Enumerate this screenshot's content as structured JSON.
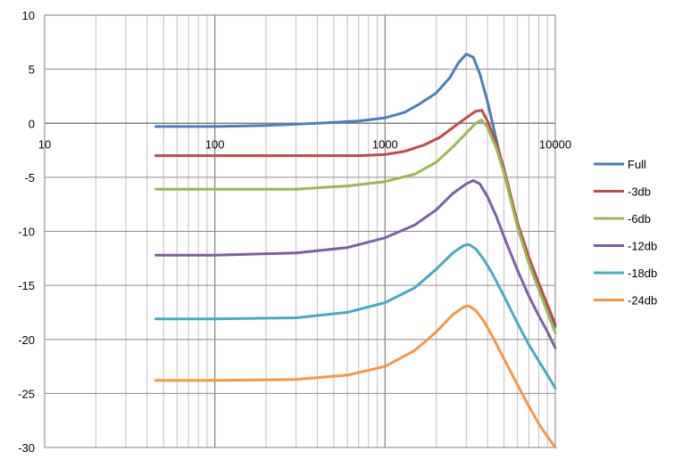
{
  "chart_data": {
    "type": "line",
    "x_scale": "log",
    "xlim": [
      10,
      10000
    ],
    "ylim": [
      -30,
      10
    ],
    "x_tick_labels": [
      "10",
      "100",
      "1000",
      "10000"
    ],
    "y_tick_labels": [
      "10",
      "5",
      "0",
      "-5",
      "-10",
      "-15",
      "-20",
      "-25",
      "-30"
    ],
    "y_ticks": [
      10,
      5,
      0,
      -5,
      -10,
      -15,
      -20,
      -25,
      -30
    ],
    "x_ticks": [
      10,
      100,
      1000,
      10000
    ],
    "grid": true,
    "legend_position": "right",
    "series": [
      {
        "name": "Full",
        "color": "#4A7EBB",
        "points": [
          [
            45,
            -0.3
          ],
          [
            100,
            -0.3
          ],
          [
            200,
            -0.2
          ],
          [
            400,
            0.0
          ],
          [
            700,
            0.2
          ],
          [
            1000,
            0.5
          ],
          [
            1300,
            1.0
          ],
          [
            1600,
            1.8
          ],
          [
            2000,
            2.8
          ],
          [
            2400,
            4.2
          ],
          [
            2700,
            5.6
          ],
          [
            3000,
            6.4
          ],
          [
            3300,
            6.1
          ],
          [
            3600,
            4.6
          ],
          [
            4000,
            2.0
          ],
          [
            4500,
            -1.5
          ],
          [
            5000,
            -4.6
          ],
          [
            6000,
            -9.5
          ],
          [
            7000,
            -12.5
          ],
          [
            8000,
            -15.0
          ],
          [
            9000,
            -17.0
          ],
          [
            10000,
            -18.8
          ]
        ]
      },
      {
        "name": "-3db",
        "color": "#BE4B48",
        "points": [
          [
            45,
            -3.0
          ],
          [
            100,
            -3.0
          ],
          [
            300,
            -3.0
          ],
          [
            700,
            -3.0
          ],
          [
            1000,
            -2.9
          ],
          [
            1300,
            -2.6
          ],
          [
            1700,
            -2.0
          ],
          [
            2100,
            -1.3
          ],
          [
            2600,
            -0.2
          ],
          [
            3000,
            0.5
          ],
          [
            3400,
            1.1
          ],
          [
            3700,
            1.2
          ],
          [
            4000,
            0.2
          ],
          [
            4500,
            -1.8
          ],
          [
            5000,
            -4.2
          ],
          [
            6000,
            -9.2
          ],
          [
            7000,
            -12.4
          ],
          [
            8000,
            -14.8
          ],
          [
            9000,
            -16.8
          ],
          [
            10000,
            -18.6
          ]
        ]
      },
      {
        "name": "-6db",
        "color": "#98B954",
        "points": [
          [
            45,
            -6.1
          ],
          [
            100,
            -6.1
          ],
          [
            300,
            -6.1
          ],
          [
            600,
            -5.8
          ],
          [
            1000,
            -5.4
          ],
          [
            1500,
            -4.7
          ],
          [
            2000,
            -3.6
          ],
          [
            2500,
            -2.2
          ],
          [
            3000,
            -0.9
          ],
          [
            3400,
            0.0
          ],
          [
            3700,
            0.3
          ],
          [
            4000,
            -0.4
          ],
          [
            4500,
            -2.3
          ],
          [
            5000,
            -4.6
          ],
          [
            6000,
            -9.6
          ],
          [
            7000,
            -13.0
          ],
          [
            8000,
            -15.4
          ],
          [
            9000,
            -17.5
          ],
          [
            10000,
            -19.4
          ]
        ]
      },
      {
        "name": "-12db",
        "color": "#7D60A0",
        "points": [
          [
            45,
            -12.2
          ],
          [
            100,
            -12.2
          ],
          [
            300,
            -12.0
          ],
          [
            600,
            -11.5
          ],
          [
            1000,
            -10.6
          ],
          [
            1500,
            -9.4
          ],
          [
            2000,
            -8.0
          ],
          [
            2500,
            -6.5
          ],
          [
            3000,
            -5.6
          ],
          [
            3300,
            -5.3
          ],
          [
            3600,
            -5.6
          ],
          [
            4000,
            -6.8
          ],
          [
            4500,
            -8.6
          ],
          [
            5000,
            -10.5
          ],
          [
            6000,
            -13.6
          ],
          [
            7000,
            -16.0
          ],
          [
            8000,
            -17.8
          ],
          [
            9000,
            -19.3
          ],
          [
            10000,
            -20.8
          ]
        ]
      },
      {
        "name": "-18db",
        "color": "#46AAC5",
        "points": [
          [
            45,
            -18.1
          ],
          [
            100,
            -18.1
          ],
          [
            300,
            -18.0
          ],
          [
            600,
            -17.5
          ],
          [
            1000,
            -16.6
          ],
          [
            1500,
            -15.2
          ],
          [
            2000,
            -13.5
          ],
          [
            2500,
            -12.0
          ],
          [
            2900,
            -11.3
          ],
          [
            3100,
            -11.2
          ],
          [
            3400,
            -11.6
          ],
          [
            3800,
            -12.6
          ],
          [
            4300,
            -14.0
          ],
          [
            5000,
            -16.0
          ],
          [
            6000,
            -18.5
          ],
          [
            7000,
            -20.5
          ],
          [
            8000,
            -22.0
          ],
          [
            9000,
            -23.3
          ],
          [
            10000,
            -24.5
          ]
        ]
      },
      {
        "name": "-24db",
        "color": "#F79646",
        "points": [
          [
            45,
            -23.8
          ],
          [
            100,
            -23.8
          ],
          [
            300,
            -23.7
          ],
          [
            600,
            -23.3
          ],
          [
            1000,
            -22.5
          ],
          [
            1500,
            -21.0
          ],
          [
            2000,
            -19.3
          ],
          [
            2500,
            -17.7
          ],
          [
            2900,
            -17.0
          ],
          [
            3100,
            -16.9
          ],
          [
            3400,
            -17.3
          ],
          [
            3800,
            -18.3
          ],
          [
            4300,
            -19.8
          ],
          [
            5000,
            -21.8
          ],
          [
            6000,
            -24.2
          ],
          [
            7000,
            -26.2
          ],
          [
            8000,
            -27.8
          ],
          [
            9000,
            -29.0
          ],
          [
            10000,
            -30.0
          ]
        ]
      }
    ]
  }
}
